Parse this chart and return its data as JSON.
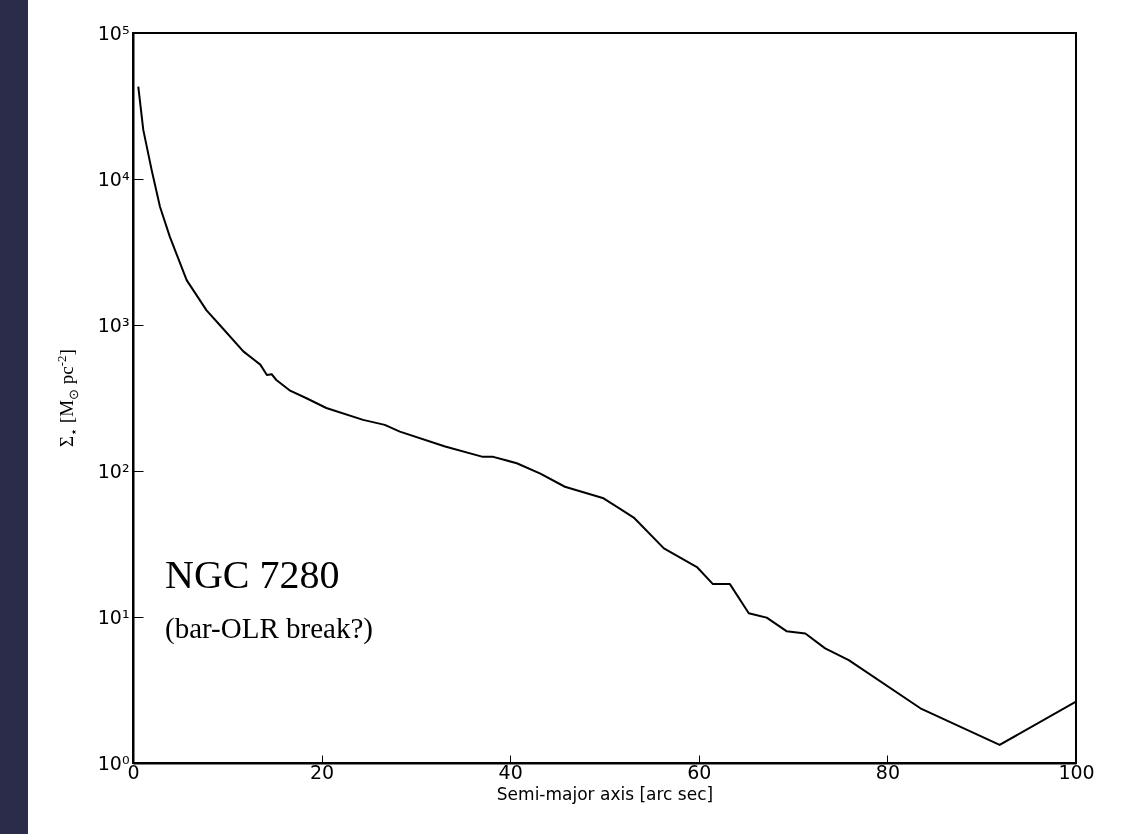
{
  "chart_data": {
    "type": "line",
    "xlabel": "Semi-major axis [arc sec]",
    "ylabel": "Σ$_{⋆}$ [M$_{⊙}$ pc$^{-2}$]",
    "annotations": [
      "NGC 7280",
      "(bar-OLR break?)"
    ],
    "log": "y",
    "grid": false,
    "xlim": [
      0,
      100
    ],
    "xticks": [
      0,
      20,
      40,
      60,
      80,
      100
    ],
    "ylim": [
      1,
      100000
    ],
    "yticks": [
      {
        "value": 1,
        "label": "10⁰"
      },
      {
        "value": 10,
        "label": "10¹"
      },
      {
        "value": 100,
        "label": "10²"
      },
      {
        "value": 1000,
        "label": "10³"
      },
      {
        "value": 10000,
        "label": "10⁴"
      },
      {
        "value": 100000,
        "label": "10⁵"
      }
    ],
    "series": [
      {
        "color": "#000000",
        "x": [
          0.56,
          1.09,
          1.98,
          2.86,
          3.92,
          5.69,
          7.8,
          9.2,
          11.7,
          13.5,
          14.2,
          14.7,
          15.2,
          16.6,
          18.4,
          20.5,
          24.4,
          26.7,
          28.3,
          33.1,
          37.1,
          38.2,
          40.7,
          43.2,
          45.8,
          49.9,
          53.1,
          56.3,
          59.8,
          61.5,
          63.3,
          65.3,
          67.2,
          69.3,
          71.3,
          73.4,
          75.9,
          83.5,
          91.9,
          100
        ],
        "values": [
          43000,
          21700,
          11500,
          6450,
          4000,
          2030,
          1260,
          1000,
          660,
          535,
          455,
          460,
          420,
          357,
          315,
          270,
          224,
          207,
          186,
          147,
          125,
          125,
          113,
          96,
          78,
          65,
          48,
          29.5,
          22,
          16.8,
          16.8,
          10.6,
          9.9,
          8.0,
          7.7,
          6.1,
          5.07,
          2.37,
          1.33,
          2.63
        ]
      }
    ]
  }
}
